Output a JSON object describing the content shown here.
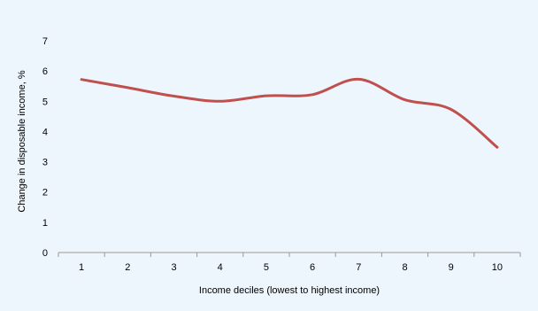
{
  "chart_data": {
    "type": "line",
    "title": "",
    "xlabel": "Income deciles (lowest to highest income)",
    "ylabel": "Change in disposable income, %",
    "categories": [
      "1",
      "2",
      "3",
      "4",
      "5",
      "6",
      "7",
      "8",
      "9",
      "10"
    ],
    "series": [
      {
        "values": [
          5.72,
          5.45,
          5.17,
          5.0,
          5.18,
          5.22,
          5.73,
          5.05,
          4.73,
          3.48
        ],
        "color": "#c0504d"
      }
    ],
    "ylim": [
      0,
      7
    ],
    "yticks": [
      0,
      1,
      2,
      3,
      4,
      5,
      6,
      7
    ],
    "grid": false,
    "legend": "none",
    "background_color": "#edf6fc"
  }
}
